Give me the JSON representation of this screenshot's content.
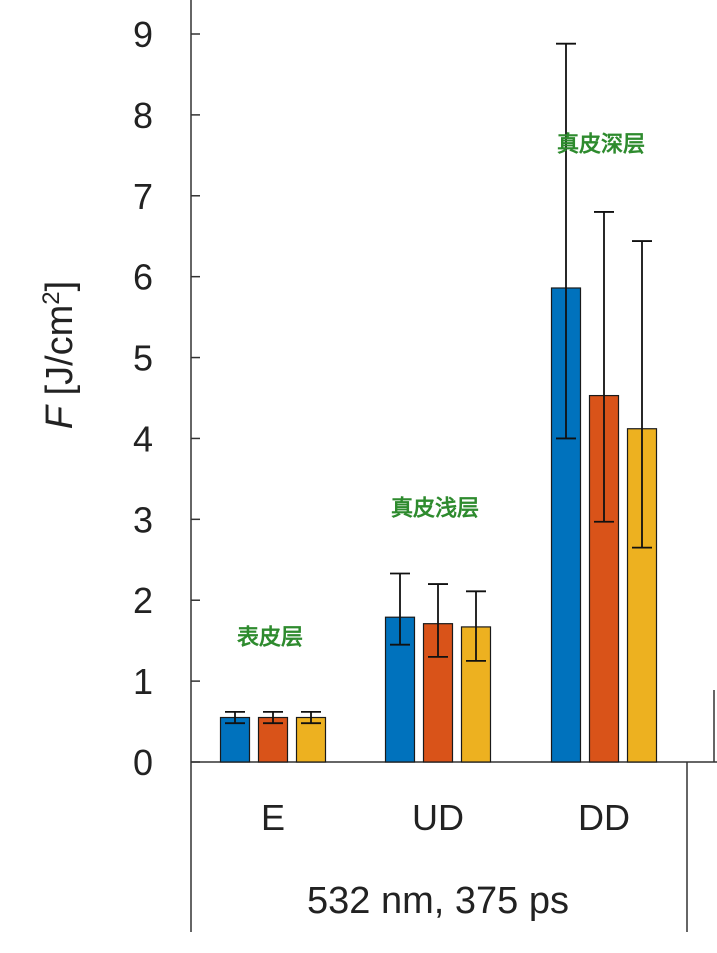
{
  "chart_data": {
    "type": "bar",
    "categories": [
      "E",
      "UD",
      "DD"
    ],
    "group_label": "532 nm, 375 ps",
    "ylabel_var": "F",
    "ylabel_unit": " [J/cm",
    "ylabel_sup": "2",
    "ylabel_close": "]",
    "ylim": [
      0,
      9
    ],
    "yticks": [
      "0",
      "1",
      "2",
      "3",
      "4",
      "5",
      "6",
      "7",
      "8",
      "9"
    ],
    "series_colors": [
      "#0072BD",
      "#D95319",
      "#EDB120"
    ],
    "series": [
      {
        "values": [
          0.55,
          1.79,
          5.86
        ],
        "err_low": [
          0.48,
          1.45,
          4.0
        ],
        "err_high": [
          0.62,
          2.33,
          8.88
        ]
      },
      {
        "values": [
          0.55,
          1.71,
          4.53
        ],
        "err_low": [
          0.48,
          1.3,
          2.97
        ],
        "err_high": [
          0.62,
          2.2,
          6.8
        ]
      },
      {
        "values": [
          0.55,
          1.67,
          4.12
        ],
        "err_low": [
          0.48,
          1.25,
          2.65
        ],
        "err_high": [
          0.62,
          2.11,
          6.44
        ]
      }
    ],
    "annotations": [
      {
        "text": "表皮层",
        "category": "E",
        "y": 1.45
      },
      {
        "text": "真皮浅层",
        "category": "UD",
        "y": 3.05
      },
      {
        "text": "真皮深层",
        "category": "DD",
        "y": 7.55
      }
    ]
  }
}
